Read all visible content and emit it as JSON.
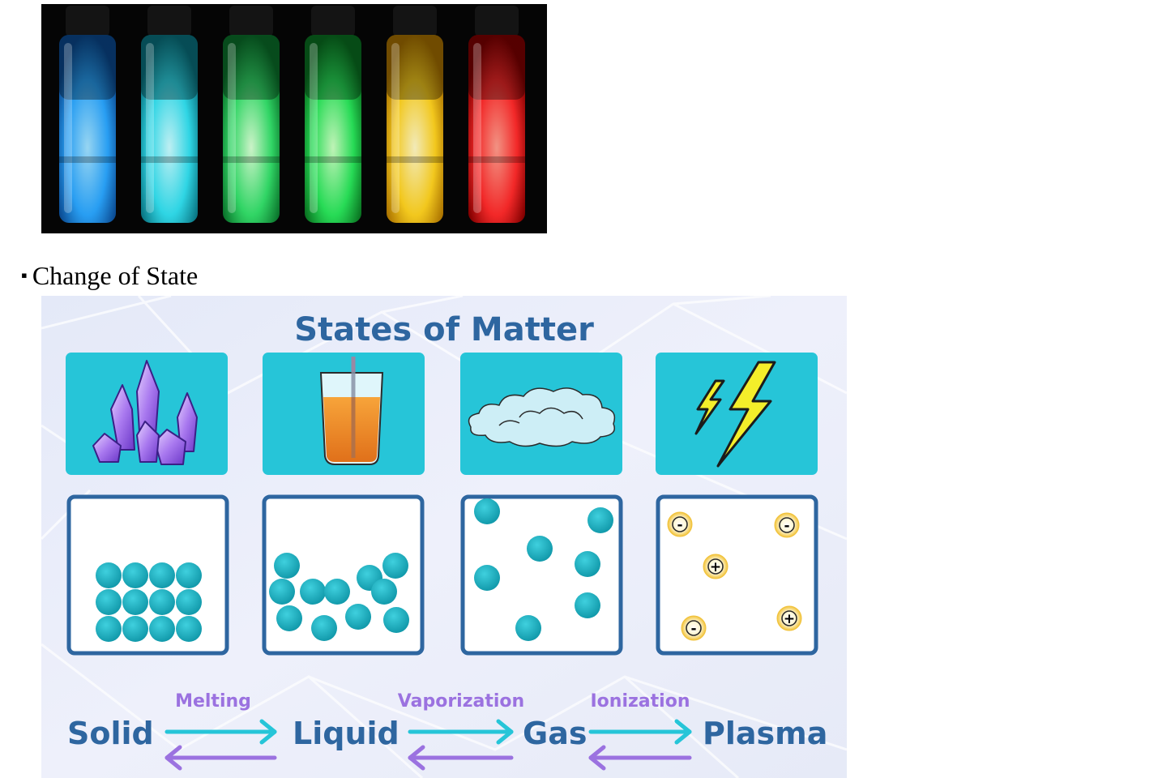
{
  "figure": {
    "bullet_char": "▪",
    "bullet_text": "Change of State"
  },
  "states_of_matter": {
    "title": "States of Matter",
    "states": [
      {
        "label": "Solid",
        "icon": "crystal-icon"
      },
      {
        "label": "Liquid",
        "icon": "juice-glass-icon"
      },
      {
        "label": "Gas",
        "icon": "cloud-icon"
      },
      {
        "label": "Plasma",
        "icon": "lightning-icon"
      }
    ],
    "transitions": [
      {
        "label": "Melting"
      },
      {
        "label": "Vaporization"
      },
      {
        "label": "Ionization"
      }
    ],
    "plasma_charges": [
      "-",
      "-",
      "+",
      "-",
      "+"
    ],
    "colors": {
      "title_blue": "#2e66a0",
      "tile_teal": "#26c5d8",
      "particle_teal": "#17a9b9",
      "forward_arrow": "#26c5d8",
      "reverse_arrow": "#9b72e0",
      "transition_label": "#9b72e0"
    }
  },
  "vials": {
    "colors": [
      "#2aa6ff",
      "#31e0f0",
      "#33e06a",
      "#29e65a",
      "#ffd21f",
      "#ff2a2a"
    ]
  }
}
